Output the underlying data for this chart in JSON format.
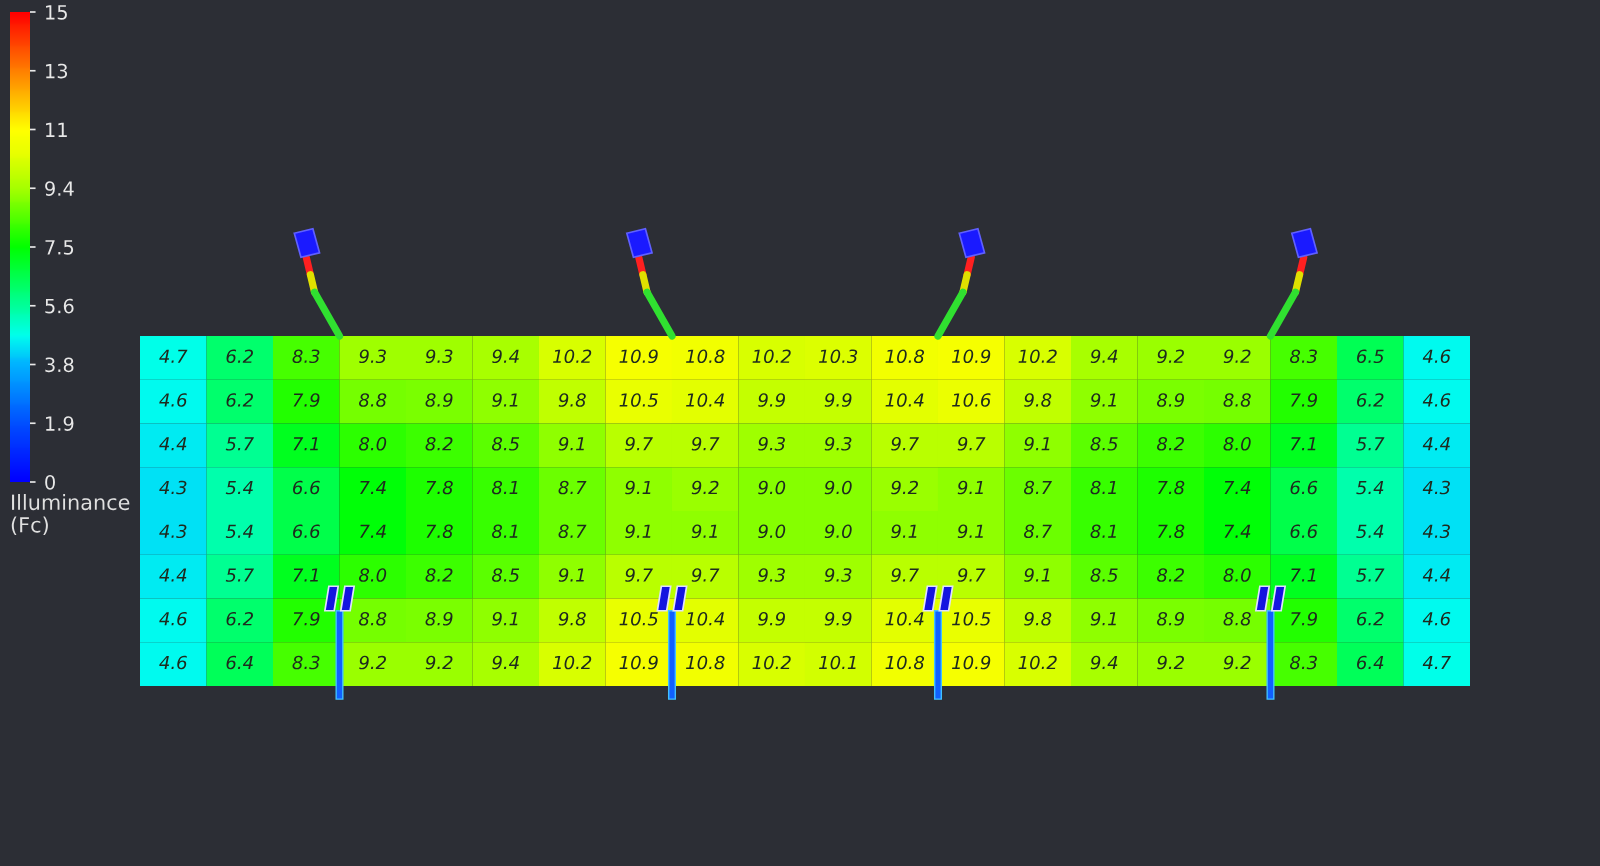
{
  "chart_data": {
    "type": "heatmap",
    "categories": [
      null,
      null,
      null,
      null,
      null,
      null,
      null,
      null,
      null,
      null,
      null,
      null,
      null,
      null,
      null,
      null,
      null,
      null,
      null,
      null
    ],
    "y_categories": [
      null,
      null,
      null,
      null,
      null,
      null,
      null,
      null
    ],
    "cells": [
      [
        4.7,
        6.2,
        8.3,
        9.3,
        9.3,
        9.4,
        10.2,
        10.9,
        10.8,
        10.2,
        10.3,
        10.8,
        10.9,
        10.2,
        9.4,
        9.2,
        9.2,
        8.3,
        6.5,
        4.6
      ],
      [
        4.6,
        6.2,
        7.9,
        8.8,
        8.9,
        9.1,
        9.8,
        10.5,
        10.4,
        9.9,
        9.9,
        10.4,
        10.6,
        9.8,
        9.1,
        8.9,
        8.8,
        7.9,
        6.2,
        4.6
      ],
      [
        4.4,
        5.7,
        7.1,
        8.0,
        8.2,
        8.5,
        9.1,
        9.7,
        9.7,
        9.3,
        9.3,
        9.7,
        9.7,
        9.1,
        8.5,
        8.2,
        8.0,
        7.1,
        5.7,
        4.4
      ],
      [
        4.3,
        5.4,
        6.6,
        7.4,
        7.8,
        8.1,
        8.7,
        9.1,
        9.2,
        9.0,
        9.0,
        9.2,
        9.1,
        8.7,
        8.1,
        7.8,
        7.4,
        6.6,
        5.4,
        4.3
      ],
      [
        4.3,
        5.4,
        6.6,
        7.4,
        7.8,
        8.1,
        8.7,
        9.1,
        9.1,
        9.0,
        9.0,
        9.1,
        9.1,
        8.7,
        8.1,
        7.8,
        7.4,
        6.6,
        5.4,
        4.3
      ],
      [
        4.4,
        5.7,
        7.1,
        8.0,
        8.2,
        8.5,
        9.1,
        9.7,
        9.7,
        9.3,
        9.3,
        9.7,
        9.7,
        9.1,
        8.5,
        8.2,
        8.0,
        7.1,
        5.7,
        4.4
      ],
      [
        4.6,
        6.2,
        7.9,
        8.8,
        8.9,
        9.1,
        9.8,
        10.5,
        10.4,
        9.9,
        9.9,
        10.4,
        10.5,
        9.8,
        9.1,
        8.9,
        8.8,
        7.9,
        6.2,
        4.6
      ],
      [
        4.6,
        6.4,
        8.3,
        9.2,
        9.2,
        9.4,
        10.2,
        10.9,
        10.8,
        10.2,
        10.1,
        10.8,
        10.9,
        10.2,
        9.4,
        9.2,
        9.2,
        8.3,
        6.4,
        4.7
      ]
    ],
    "cell_labels": [
      [
        "4.7",
        "6.2",
        "8.3",
        "9.3",
        "9.3",
        "9.4",
        "10.2",
        "10.9",
        "10.8",
        "10.2",
        "10.3",
        "10.8",
        "10.9",
        "10.2",
        "9.4",
        "9.2",
        "9.2",
        "8.3",
        "6.5",
        "4.6"
      ],
      [
        "4.6",
        "6.2",
        "7.9",
        "8.8",
        "8.9",
        "9.1",
        "9.8",
        "10.5",
        "10.4",
        "9.9",
        "9.9",
        "10.4",
        "10.6",
        "9.8",
        "9.1",
        "8.9",
        "8.8",
        "7.9",
        "6.2",
        "4.6"
      ],
      [
        "4.4",
        "5.7",
        "7.1",
        "8.0",
        "8.2",
        "8.5",
        "9.1",
        "9.7",
        "9.7",
        "9.3",
        "9.3",
        "9.7",
        "9.7",
        "9.1",
        "8.5",
        "8.2",
        "8.0",
        "7.1",
        "5.7",
        "4.4"
      ],
      [
        "4.3",
        "5.4",
        "6.6",
        "7.4",
        "7.8",
        "8.1",
        "8.7",
        "9.1",
        "9.2",
        "9.0",
        "9.0",
        "9.2",
        "9.1",
        "8.7",
        "8.1",
        "7.8",
        "7.4",
        "6.6",
        "5.4",
        "4.3"
      ],
      [
        "4.3",
        "5.4",
        "6.6",
        "7.4",
        "7.8",
        "8.1",
        "8.7",
        "9.1",
        "9.1",
        "9.0",
        "9.0",
        "9.1",
        "9.1",
        "8.7",
        "8.1",
        "7.8",
        "7.4",
        "6.6",
        "5.4",
        "4.3"
      ],
      [
        "4.4",
        "5.7",
        "7.1",
        "8.0",
        "8.2",
        "8.5",
        "9.1",
        "9.7",
        "9.7",
        "9.3",
        "9.3",
        "9.7",
        "9.7",
        "9.1",
        "8.5",
        "8.2",
        "8.0",
        "7.1",
        "5.7",
        "4.4"
      ],
      [
        "4.6",
        "6.2",
        "7.9",
        "8.8",
        "8.9",
        "9.1",
        "9.8",
        "10.5",
        "10.4",
        "9.9",
        "9.9",
        "10.4",
        "10.5",
        "9.8",
        "9.1",
        "8.9",
        "8.8",
        "7.9",
        "6.2",
        "4.6"
      ],
      [
        "4.6",
        "6.4",
        "8.3",
        "9.2",
        "9.2",
        "9.4",
        "10.2",
        "10.9",
        "10.8",
        "10.2",
        "10.1",
        "10.8",
        "10.9",
        "10.2",
        "9.4",
        "9.2",
        "9.2",
        "8.3",
        "6.4",
        "4.7"
      ]
    ],
    "clim": [
      0,
      15
    ],
    "cticks": [
      0,
      {
        "value": 1.875,
        "label": "1.9"
      },
      {
        "value": 3.75,
        "label": "3.8"
      },
      {
        "value": 5.625,
        "label": "5.6"
      },
      7.5,
      {
        "value": 9.375,
        "label": "9.4"
      },
      {
        "value": 11.25,
        "label": "11"
      },
      {
        "value": 13.125,
        "label": "13"
      },
      15
    ],
    "clabel": "Illuminance (Fc)",
    "data_labels": true
  }
}
